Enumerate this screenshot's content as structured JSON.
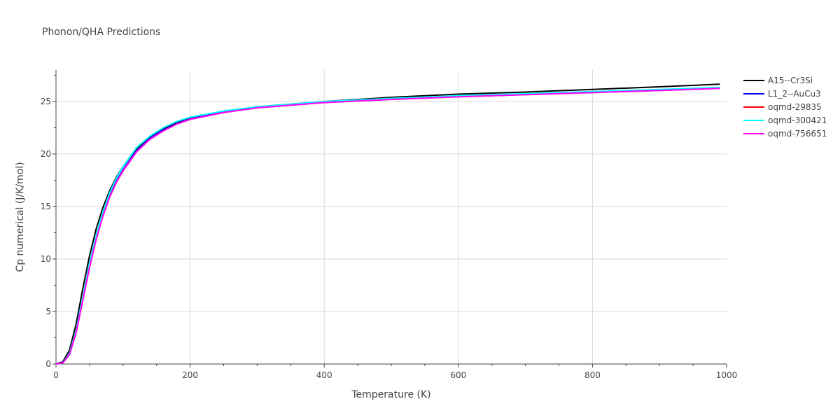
{
  "chart_data": {
    "type": "line",
    "title": "Phonon/QHA Predictions",
    "xlabel": "Temperature (K)",
    "ylabel": "Cp numerical (J/K/mol)",
    "xlim": [
      0,
      1000
    ],
    "ylim": [
      0,
      28
    ],
    "x_ticks": [
      0,
      200,
      400,
      600,
      800,
      1000
    ],
    "y_ticks": [
      0,
      5,
      10,
      15,
      20,
      25
    ],
    "grid": true,
    "legend_position": "top-right",
    "series": [
      {
        "name": "A15--Cr3Si",
        "color": "#000000",
        "x": [
          0,
          10,
          20,
          30,
          40,
          50,
          60,
          70,
          80,
          90,
          100,
          120,
          140,
          160,
          180,
          200,
          250,
          300,
          400,
          500,
          600,
          700,
          800,
          900,
          990
        ],
        "y": [
          0,
          0.2,
          1.3,
          3.8,
          7.2,
          10.3,
          12.9,
          14.9,
          16.5,
          17.8,
          18.8,
          20.5,
          21.6,
          22.4,
          23.0,
          23.4,
          24.0,
          24.5,
          25.0,
          25.4,
          25.7,
          25.9,
          26.15,
          26.4,
          26.65
        ]
      },
      {
        "name": "L1_2--AuCu3",
        "color": "#0000ff",
        "x": [
          0,
          10,
          20,
          30,
          40,
          50,
          60,
          70,
          80,
          90,
          100,
          120,
          140,
          160,
          180,
          200,
          250,
          300,
          400,
          500,
          600,
          700,
          800,
          900,
          990
        ],
        "y": [
          0,
          0.1,
          0.9,
          3.0,
          6.2,
          9.3,
          12.0,
          14.2,
          16.0,
          17.4,
          18.5,
          20.3,
          21.5,
          22.3,
          22.9,
          23.35,
          24.0,
          24.45,
          24.95,
          25.25,
          25.5,
          25.7,
          25.9,
          26.1,
          26.3
        ]
      },
      {
        "name": "oqmd-29835",
        "color": "#ff0000",
        "x": [
          0,
          10,
          20,
          30,
          40,
          50,
          60,
          70,
          80,
          90,
          100,
          120,
          140,
          160,
          180,
          200,
          250,
          300,
          400,
          500,
          600,
          700,
          800,
          900,
          990
        ],
        "y": [
          0,
          0.1,
          0.9,
          3.0,
          6.1,
          9.2,
          11.9,
          14.1,
          15.9,
          17.3,
          18.4,
          20.2,
          21.4,
          22.2,
          22.85,
          23.3,
          23.95,
          24.4,
          24.9,
          25.2,
          25.45,
          25.65,
          25.85,
          26.05,
          26.25
        ]
      },
      {
        "name": "oqmd-300421",
        "color": "#00ffff",
        "x": [
          0,
          10,
          20,
          30,
          40,
          50,
          60,
          70,
          80,
          90,
          100,
          120,
          140,
          160,
          180,
          200,
          250,
          300,
          400,
          500,
          600,
          700,
          800,
          900,
          990
        ],
        "y": [
          0,
          0.1,
          1.0,
          3.2,
          6.4,
          9.6,
          12.3,
          14.5,
          16.3,
          17.7,
          18.8,
          20.6,
          21.7,
          22.5,
          23.1,
          23.5,
          24.1,
          24.5,
          25.0,
          25.3,
          25.55,
          25.75,
          25.95,
          26.15,
          26.35
        ]
      },
      {
        "name": "oqmd-756651",
        "color": "#ff00ff",
        "x": [
          0,
          10,
          20,
          30,
          40,
          50,
          60,
          70,
          80,
          90,
          100,
          120,
          140,
          160,
          180,
          200,
          250,
          300,
          400,
          500,
          600,
          700,
          800,
          900,
          990
        ],
        "y": [
          0,
          0.1,
          0.9,
          3.0,
          6.1,
          9.2,
          11.9,
          14.1,
          15.9,
          17.3,
          18.4,
          20.2,
          21.4,
          22.2,
          22.85,
          23.3,
          23.95,
          24.4,
          24.9,
          25.2,
          25.45,
          25.65,
          25.85,
          26.05,
          26.25
        ]
      }
    ]
  }
}
